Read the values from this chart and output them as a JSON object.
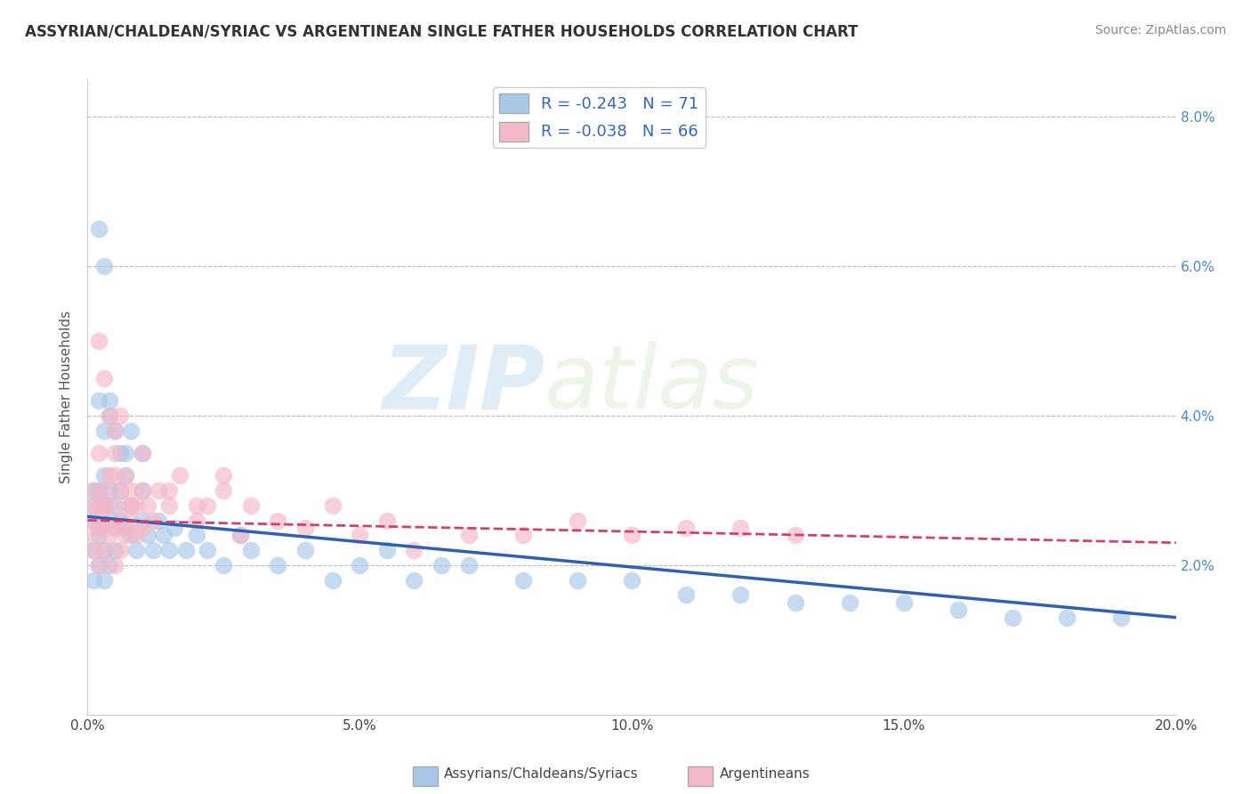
{
  "title": "ASSYRIAN/CHALDEAN/SYRIAC VS ARGENTINEAN SINGLE FATHER HOUSEHOLDS CORRELATION CHART",
  "source_text": "Source: ZipAtlas.com",
  "ylabel": "Single Father Households",
  "R1": -0.243,
  "N1": 71,
  "R2": -0.038,
  "N2": 66,
  "color1": "#a8c8e8",
  "color2": "#f4b8c8",
  "line_color1": "#3060b0",
  "line_color2": "#d04070",
  "xmin": 0.0,
  "xmax": 0.2,
  "ymin": 0.0,
  "ymax": 0.085,
  "yticks": [
    0.0,
    0.02,
    0.04,
    0.06,
    0.08
  ],
  "ytick_labels": [
    "",
    "2.0%",
    "4.0%",
    "6.0%",
    "8.0%"
  ],
  "xticks": [
    0.0,
    0.05,
    0.1,
    0.15,
    0.2
  ],
  "xtick_labels": [
    "0.0%",
    "5.0%",
    "10.0%",
    "15.0%",
    "20.0%"
  ],
  "legend_label_1": "Assyrians/Chaldeans/Syriacs",
  "legend_label_2": "Argentineans",
  "watermark_zip": "ZIP",
  "watermark_atlas": "atlas",
  "background_color": "#ffffff",
  "grid_color": "#bbbbbb",
  "blue_x": [
    0.001,
    0.001,
    0.001,
    0.001,
    0.001,
    0.002,
    0.002,
    0.002,
    0.002,
    0.003,
    0.003,
    0.003,
    0.003,
    0.004,
    0.004,
    0.004,
    0.005,
    0.005,
    0.005,
    0.006,
    0.006,
    0.007,
    0.007,
    0.008,
    0.008,
    0.009,
    0.01,
    0.01,
    0.011,
    0.012,
    0.013,
    0.014,
    0.015,
    0.016,
    0.018,
    0.02,
    0.022,
    0.025,
    0.028,
    0.03,
    0.035,
    0.04,
    0.045,
    0.05,
    0.055,
    0.06,
    0.065,
    0.07,
    0.08,
    0.09,
    0.1,
    0.11,
    0.12,
    0.13,
    0.14,
    0.15,
    0.16,
    0.17,
    0.18,
    0.19,
    0.002,
    0.003,
    0.004,
    0.005,
    0.006,
    0.007,
    0.008,
    0.01,
    0.002,
    0.003,
    0.004
  ],
  "blue_y": [
    0.026,
    0.022,
    0.028,
    0.018,
    0.03,
    0.025,
    0.02,
    0.03,
    0.024,
    0.028,
    0.022,
    0.032,
    0.018,
    0.026,
    0.03,
    0.02,
    0.025,
    0.028,
    0.022,
    0.026,
    0.03,
    0.025,
    0.032,
    0.024,
    0.028,
    0.022,
    0.026,
    0.03,
    0.024,
    0.022,
    0.026,
    0.024,
    0.022,
    0.025,
    0.022,
    0.024,
    0.022,
    0.02,
    0.024,
    0.022,
    0.02,
    0.022,
    0.018,
    0.02,
    0.022,
    0.018,
    0.02,
    0.02,
    0.018,
    0.018,
    0.018,
    0.016,
    0.016,
    0.015,
    0.015,
    0.015,
    0.014,
    0.013,
    0.013,
    0.013,
    0.065,
    0.06,
    0.04,
    0.038,
    0.035,
    0.035,
    0.038,
    0.035,
    0.042,
    0.038,
    0.042
  ],
  "pink_x": [
    0.001,
    0.001,
    0.001,
    0.001,
    0.001,
    0.002,
    0.002,
    0.002,
    0.003,
    0.003,
    0.003,
    0.004,
    0.004,
    0.005,
    0.005,
    0.005,
    0.006,
    0.006,
    0.007,
    0.007,
    0.008,
    0.009,
    0.01,
    0.011,
    0.012,
    0.013,
    0.015,
    0.017,
    0.02,
    0.022,
    0.025,
    0.028,
    0.03,
    0.035,
    0.04,
    0.045,
    0.05,
    0.055,
    0.06,
    0.07,
    0.08,
    0.09,
    0.1,
    0.11,
    0.12,
    0.13,
    0.002,
    0.003,
    0.004,
    0.005,
    0.006,
    0.007,
    0.008,
    0.01,
    0.002,
    0.003,
    0.004,
    0.005,
    0.006,
    0.007,
    0.008,
    0.009,
    0.01,
    0.015,
    0.02,
    0.025
  ],
  "pink_y": [
    0.026,
    0.022,
    0.028,
    0.03,
    0.024,
    0.025,
    0.02,
    0.028,
    0.026,
    0.03,
    0.022,
    0.024,
    0.028,
    0.025,
    0.02,
    0.032,
    0.026,
    0.022,
    0.028,
    0.024,
    0.026,
    0.024,
    0.025,
    0.028,
    0.026,
    0.03,
    0.028,
    0.032,
    0.026,
    0.028,
    0.03,
    0.024,
    0.028,
    0.026,
    0.025,
    0.028,
    0.024,
    0.026,
    0.022,
    0.024,
    0.024,
    0.026,
    0.024,
    0.025,
    0.025,
    0.024,
    0.035,
    0.028,
    0.032,
    0.038,
    0.03,
    0.025,
    0.028,
    0.03,
    0.05,
    0.045,
    0.04,
    0.035,
    0.04,
    0.032,
    0.03,
    0.028,
    0.035,
    0.03,
    0.028,
    0.032
  ],
  "blue_trend_x0": 0.0,
  "blue_trend_y0": 0.0265,
  "blue_trend_x1": 0.2,
  "blue_trend_y1": 0.013,
  "pink_trend_x0": 0.0,
  "pink_trend_y0": 0.026,
  "pink_trend_x1": 0.2,
  "pink_trend_y1": 0.023
}
